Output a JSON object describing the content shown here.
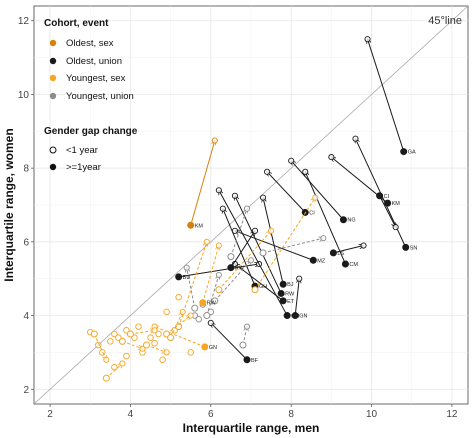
{
  "chart_data": {
    "type": "scatter",
    "title": "",
    "xlabel": "Interquartile range, men",
    "ylabel": "Interquartile range, women",
    "xlim": [
      1.6,
      12.4
    ],
    "ylim": [
      1.6,
      12.4
    ],
    "x_ticks": [
      "2",
      "4",
      "6",
      "8",
      "10",
      "12"
    ],
    "y_ticks": [
      "2",
      "4",
      "6",
      "8",
      "10",
      "12"
    ],
    "grid": true,
    "reference_line": {
      "label": "45°line",
      "slope": 1,
      "intercept": 0
    },
    "legend": {
      "position": "top-left",
      "cohort_title": "Cohort, event",
      "cohort_items": [
        {
          "label": "Oldest, sex",
          "color": "#d4820a"
        },
        {
          "label": "Oldest, union",
          "color": "#1a1a1a"
        },
        {
          "label": "Youngest, sex",
          "color": "#f5a623"
        },
        {
          "label": "Youngest, union",
          "color": "#8c8c8c"
        }
      ],
      "gap_title": "Gender gap change",
      "gap_items": [
        {
          "label": "<1 year",
          "filled": false
        },
        {
          "label": ">=1year",
          "filled": true
        }
      ]
    },
    "series": [
      {
        "cohort": "Oldest, sex",
        "linestyle": "solid",
        "color": "#d4820a",
        "segments": [
          {
            "label": "KM",
            "from": [
              5.5,
              6.45
            ],
            "to": [
              6.1,
              8.75
            ],
            "filled": true
          }
        ]
      },
      {
        "cohort": "Oldest, union",
        "linestyle": "solid",
        "color": "#1a1a1a",
        "segments": [
          {
            "label": "GA",
            "from": [
              10.8,
              8.45
            ],
            "to": [
              9.9,
              11.5
            ],
            "filled": true
          },
          {
            "label": "SN",
            "from": [
              10.85,
              5.85
            ],
            "to": [
              9.6,
              8.8
            ],
            "filled": true
          },
          {
            "label": "KM",
            "from": [
              10.4,
              7.05
            ],
            "to": [
              9.0,
              8.3
            ],
            "filled": true
          },
          {
            "label": "CI",
            "from": [
              10.2,
              7.25
            ],
            "to": [
              10.6,
              6.4
            ],
            "filled": true
          },
          {
            "label": "NG",
            "from": [
              9.3,
              6.6
            ],
            "to": [
              8.0,
              8.2
            ],
            "filled": true
          },
          {
            "label": "CM",
            "from": [
              9.35,
              5.4
            ],
            "to": [
              8.35,
              7.9
            ],
            "filled": true
          },
          {
            "label": "LS",
            "from": [
              9.05,
              5.7
            ],
            "to": [
              9.8,
              5.9
            ],
            "filled": true
          },
          {
            "label": "CI",
            "from": [
              8.35,
              6.8
            ],
            "to": [
              7.4,
              7.9
            ],
            "filled": true
          },
          {
            "label": "MZ",
            "from": [
              8.55,
              5.5
            ],
            "to": [
              6.6,
              6.3
            ],
            "filled": true
          },
          {
            "label": "BJ",
            "from": [
              7.8,
              4.85
            ],
            "to": [
              7.3,
              7.2
            ],
            "filled": true
          },
          {
            "label": "BU",
            "from": [
              5.2,
              5.05
            ],
            "to": [
              7.2,
              5.4
            ],
            "filled": true
          },
          {
            "label": "RW",
            "from": [
              7.75,
              4.6
            ],
            "to": [
              6.6,
              7.25
            ],
            "filled": true
          },
          {
            "label": "ET",
            "from": [
              7.8,
              4.4
            ],
            "to": [
              6.6,
              5.4
            ],
            "filled": true
          },
          {
            "label": "GH",
            "from": [
              7.1,
              4.8
            ],
            "to": [
              6.3,
              6.9
            ],
            "filled": true
          },
          {
            "label": "RW",
            "from": [
              6.5,
              5.3
            ],
            "to": [
              7.1,
              6.3
            ],
            "filled": true
          },
          {
            "label": "GN",
            "from": [
              7.9,
              4.0
            ],
            "to": [
              6.2,
              7.4
            ],
            "filled": true
          },
          {
            "label": "GN",
            "from": [
              8.1,
              4.0
            ],
            "to": [
              8.2,
              5.0
            ],
            "filled": true
          },
          {
            "label": "BF",
            "from": [
              6.9,
              2.8
            ],
            "to": [
              6.0,
              3.8
            ],
            "filled": true
          }
        ]
      },
      {
        "cohort": "Youngest, sex",
        "linestyle": "dashed",
        "color": "#f5a623",
        "segments": [
          {
            "label": "RW",
            "from": [
              5.8,
              4.35
            ],
            "to": [
              6.2,
              5.9
            ],
            "filled": true
          },
          {
            "label": "GN",
            "from": [
              5.85,
              3.15
            ],
            "to": [
              4.6,
              3.7
            ],
            "filled": true
          },
          {
            "label": "",
            "from": [
              7.1,
              4.7
            ],
            "to": [
              8.6,
              7.2
            ],
            "filled": false
          },
          {
            "label": "",
            "from": [
              6.2,
              4.7
            ],
            "to": [
              7.5,
              6.3
            ],
            "filled": false
          },
          {
            "label": "",
            "from": [
              5.2,
              3.7
            ],
            "to": [
              5.9,
              6.0
            ],
            "filled": false
          },
          {
            "label": "",
            "from": [
              4.9,
              3.5
            ],
            "to": [
              5.5,
              4.0
            ],
            "filled": false
          },
          {
            "label": "",
            "from": [
              3.1,
              3.5
            ],
            "to": [
              3.4,
              2.8
            ],
            "filled": false
          },
          {
            "label": "",
            "from": [
              3.4,
              2.3
            ],
            "to": [
              3.8,
              2.7
            ],
            "filled": false
          },
          {
            "label": "",
            "from": [
              3.8,
              3.3
            ],
            "to": [
              4.3,
              3.1
            ],
            "filled": false
          },
          {
            "label": "",
            "from": [
              4.0,
              3.5
            ],
            "to": [
              4.6,
              3.6
            ],
            "filled": false
          },
          {
            "label": "",
            "from": [
              4.4,
              3.2
            ],
            "to": [
              4.9,
              3.0
            ],
            "filled": false
          },
          {
            "label": "",
            "from": [
              5.0,
              3.4
            ],
            "to": [
              5.3,
              4.1
            ],
            "filled": false
          }
        ]
      },
      {
        "cohort": "Youngest, union",
        "linestyle": "dashed",
        "color": "#8c8c8c",
        "segments": [
          {
            "label": "",
            "from": [
              6.5,
              5.6
            ],
            "to": [
              6.9,
              6.9
            ],
            "filled": false
          },
          {
            "label": "",
            "from": [
              6.1,
              4.4
            ],
            "to": [
              7.0,
              5.5
            ],
            "filled": false
          },
          {
            "label": "",
            "from": [
              7.3,
              5.7
            ],
            "to": [
              8.8,
              6.1
            ],
            "filled": false
          },
          {
            "label": "",
            "from": [
              5.6,
              4.2
            ],
            "to": [
              5.4,
              5.3
            ],
            "filled": false
          },
          {
            "label": "",
            "from": [
              5.9,
              4.0
            ],
            "to": [
              6.2,
              5.1
            ],
            "filled": false
          },
          {
            "label": "",
            "from": [
              6.8,
              3.2
            ],
            "to": [
              6.9,
              3.7
            ],
            "filled": false
          }
        ]
      }
    ],
    "extra_points": [
      {
        "x": 3.0,
        "y": 3.55,
        "color": "#f5a623",
        "filled": false
      },
      {
        "x": 3.2,
        "y": 3.2,
        "color": "#f5a623",
        "filled": false
      },
      {
        "x": 3.5,
        "y": 3.3,
        "color": "#f5a623",
        "filled": false
      },
      {
        "x": 3.6,
        "y": 3.5,
        "color": "#f5a623",
        "filled": false
      },
      {
        "x": 3.7,
        "y": 3.4,
        "color": "#f5a623",
        "filled": false
      },
      {
        "x": 3.9,
        "y": 3.6,
        "color": "#f5a623",
        "filled": false
      },
      {
        "x": 4.1,
        "y": 3.4,
        "color": "#f5a623",
        "filled": false
      },
      {
        "x": 4.2,
        "y": 3.7,
        "color": "#f5a623",
        "filled": false
      },
      {
        "x": 4.5,
        "y": 3.4,
        "color": "#f5a623",
        "filled": false
      },
      {
        "x": 4.7,
        "y": 3.5,
        "color": "#f5a623",
        "filled": false
      },
      {
        "x": 5.1,
        "y": 3.6,
        "color": "#f5a623",
        "filled": false
      },
      {
        "x": 3.3,
        "y": 3.0,
        "color": "#f5a623",
        "filled": false
      },
      {
        "x": 3.6,
        "y": 2.6,
        "color": "#f5a623",
        "filled": false
      },
      {
        "x": 4.3,
        "y": 3.0,
        "color": "#f5a623",
        "filled": false
      },
      {
        "x": 4.8,
        "y": 2.8,
        "color": "#f5a623",
        "filled": false
      },
      {
        "x": 5.2,
        "y": 4.5,
        "color": "#f5a623",
        "filled": false
      },
      {
        "x": 4.9,
        "y": 4.1,
        "color": "#f5a623",
        "filled": false
      },
      {
        "x": 5.5,
        "y": 3.0,
        "color": "#f5a623",
        "filled": false
      },
      {
        "x": 3.9,
        "y": 2.9,
        "color": "#f5a623",
        "filled": false
      },
      {
        "x": 4.6,
        "y": 3.25,
        "color": "#f5a623",
        "filled": false
      },
      {
        "x": 5.6,
        "y": 4.0,
        "color": "#8c8c8c",
        "filled": false
      },
      {
        "x": 5.8,
        "y": 4.3,
        "color": "#8c8c8c",
        "filled": false
      },
      {
        "x": 6.0,
        "y": 4.1,
        "color": "#8c8c8c",
        "filled": false
      },
      {
        "x": 5.7,
        "y": 3.9,
        "color": "#8c8c8c",
        "filled": false
      }
    ]
  }
}
